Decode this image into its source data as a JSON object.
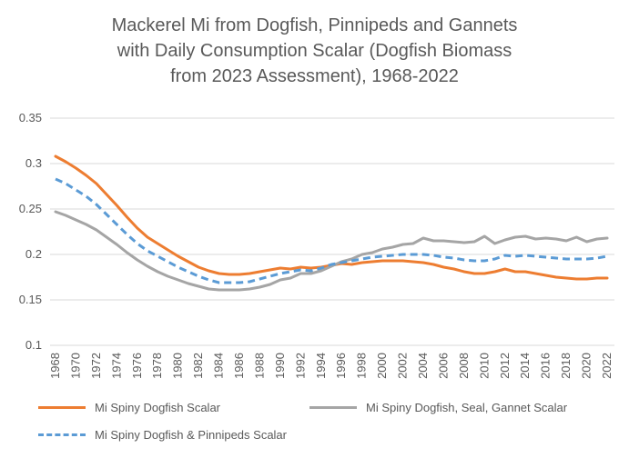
{
  "chart_data": {
    "type": "line",
    "title": [
      "Mackerel Mi from Dogfish, Pinnipeds and Gannets",
      "with Daily Consumption  Scalar (Dogfish Biomass",
      "from 2023 Assessment), 1968-2022"
    ],
    "xlabel": "",
    "ylabel": "",
    "ylim": [
      0.1,
      0.35
    ],
    "yticks": [
      "0.1",
      "0.15",
      "0.2",
      "0.25",
      "0.3",
      "0.35"
    ],
    "x": [
      1968,
      1969,
      1970,
      1971,
      1972,
      1973,
      1974,
      1975,
      1976,
      1977,
      1978,
      1979,
      1980,
      1981,
      1982,
      1983,
      1984,
      1985,
      1986,
      1987,
      1988,
      1989,
      1990,
      1991,
      1992,
      1993,
      1994,
      1995,
      1996,
      1997,
      1998,
      1999,
      2000,
      2001,
      2002,
      2003,
      2004,
      2005,
      2006,
      2007,
      2008,
      2009,
      2010,
      2011,
      2012,
      2013,
      2014,
      2015,
      2016,
      2017,
      2018,
      2019,
      2020,
      2021,
      2022
    ],
    "xticks": [
      "1968",
      "1970",
      "1972",
      "1974",
      "1976",
      "1978",
      "1980",
      "1982",
      "1984",
      "1986",
      "1988",
      "1990",
      "1992",
      "1994",
      "1996",
      "1998",
      "2000",
      "2002",
      "2004",
      "2006",
      "2008",
      "2010",
      "2012",
      "2014",
      "2016",
      "2018",
      "2020",
      "2022"
    ],
    "gridlines": true,
    "legend_position": "bottom",
    "series": [
      {
        "name": "Mi Spiny Dogfish Scalar",
        "color": "#ED7D31",
        "dash": "solid",
        "values": [
          0.308,
          0.302,
          0.295,
          0.287,
          0.278,
          0.266,
          0.254,
          0.241,
          0.229,
          0.219,
          0.212,
          0.205,
          0.198,
          0.192,
          0.186,
          0.182,
          0.179,
          0.178,
          0.178,
          0.179,
          0.181,
          0.183,
          0.185,
          0.184,
          0.186,
          0.185,
          0.186,
          0.188,
          0.19,
          0.189,
          0.191,
          0.192,
          0.193,
          0.193,
          0.193,
          0.192,
          0.191,
          0.189,
          0.186,
          0.184,
          0.181,
          0.179,
          0.179,
          0.181,
          0.184,
          0.181,
          0.181,
          0.179,
          0.177,
          0.175,
          0.174,
          0.173,
          0.173,
          0.174,
          0.174
        ]
      },
      {
        "name": "Mi Spiny Dogfish, Seal, Gannet Scalar",
        "color": "#A5A5A5",
        "dash": "solid",
        "values": [
          0.247,
          0.243,
          0.238,
          0.233,
          0.227,
          0.219,
          0.211,
          0.202,
          0.194,
          0.187,
          0.181,
          0.176,
          0.172,
          0.168,
          0.165,
          0.162,
          0.161,
          0.161,
          0.161,
          0.162,
          0.164,
          0.167,
          0.172,
          0.174,
          0.179,
          0.179,
          0.182,
          0.187,
          0.192,
          0.195,
          0.2,
          0.202,
          0.206,
          0.208,
          0.211,
          0.212,
          0.218,
          0.215,
          0.215,
          0.214,
          0.213,
          0.214,
          0.22,
          0.212,
          0.216,
          0.219,
          0.22,
          0.217,
          0.218,
          0.217,
          0.215,
          0.219,
          0.214,
          0.217,
          0.218
        ]
      },
      {
        "name": "Mi Spiny Dogfish & Pinnipeds Scalar",
        "color": "#5B9BD5",
        "dash": "dashed",
        "values": [
          0.283,
          0.278,
          0.271,
          0.264,
          0.255,
          0.244,
          0.233,
          0.222,
          0.212,
          0.204,
          0.198,
          0.192,
          0.186,
          0.181,
          0.176,
          0.172,
          0.169,
          0.169,
          0.169,
          0.17,
          0.173,
          0.176,
          0.179,
          0.181,
          0.183,
          0.182,
          0.185,
          0.189,
          0.191,
          0.193,
          0.195,
          0.197,
          0.198,
          0.199,
          0.2,
          0.2,
          0.2,
          0.199,
          0.197,
          0.196,
          0.194,
          0.193,
          0.193,
          0.195,
          0.199,
          0.198,
          0.199,
          0.198,
          0.197,
          0.196,
          0.195,
          0.195,
          0.195,
          0.196,
          0.198
        ]
      }
    ]
  }
}
